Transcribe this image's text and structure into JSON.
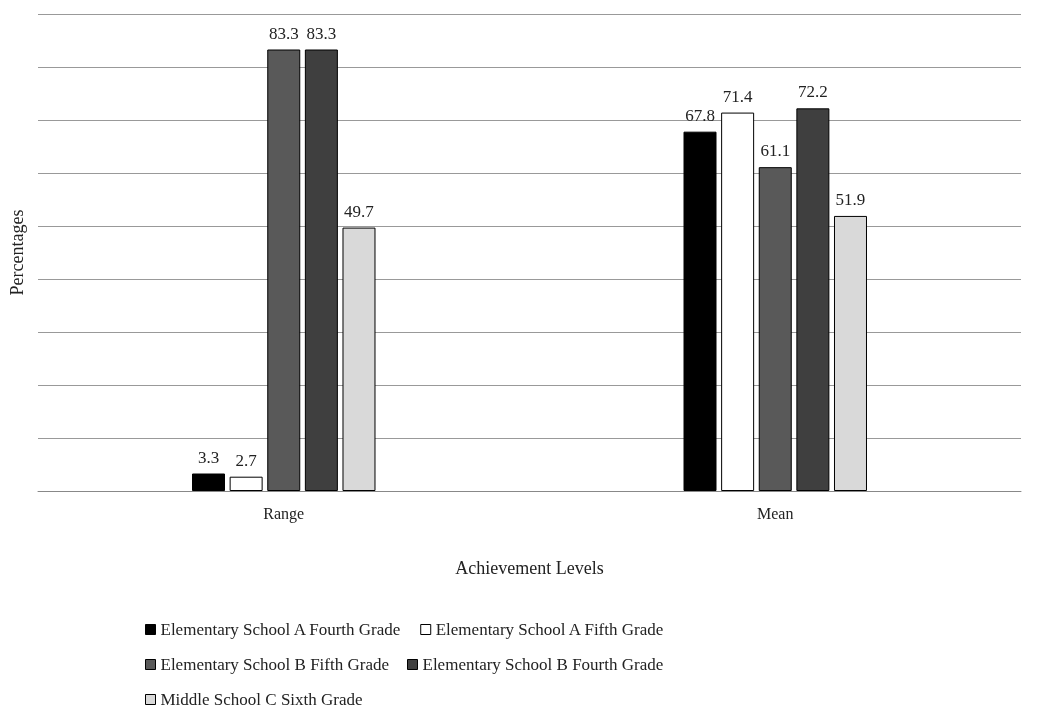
{
  "chart_data": {
    "type": "bar",
    "xlabel": "Achievement Levels",
    "ylabel": "Percentages",
    "categories": [
      "Range",
      "Mean"
    ],
    "series": [
      {
        "name": "Elementary School A Fourth Grade",
        "color": "#000000",
        "values": [
          3.3,
          67.8
        ]
      },
      {
        "name": "Elementary School A Fifth Grade",
        "color": "#ffffff",
        "values": [
          2.7,
          71.4
        ]
      },
      {
        "name": "Elementary School B Fifth Grade",
        "color": "#595959",
        "values": [
          83.3,
          61.1
        ]
      },
      {
        "name": "Elementary School B Fourth Grade",
        "color": "#3f3f3f",
        "values": [
          83.3,
          72.2
        ]
      },
      {
        "name": "Middle School C Sixth Grade",
        "color": "#d9d9d9",
        "values": [
          49.7,
          51.9
        ]
      }
    ],
    "ylim": [
      0,
      90
    ],
    "yticks": [
      {
        "value": 0,
        "label": null
      },
      {
        "value": 10,
        "label": null
      },
      {
        "value": 20,
        "label": null
      },
      {
        "value": 30,
        "label": null
      },
      {
        "value": 40,
        "label": null
      },
      {
        "value": 50,
        "label": null
      },
      {
        "value": 60,
        "label": null
      },
      {
        "value": 70,
        "label": null
      },
      {
        "value": 80,
        "label": null
      },
      {
        "value": 90,
        "label": null
      }
    ],
    "tick_labels": "x",
    "grid": "y",
    "legend": "bottom",
    "data_labels": true
  }
}
